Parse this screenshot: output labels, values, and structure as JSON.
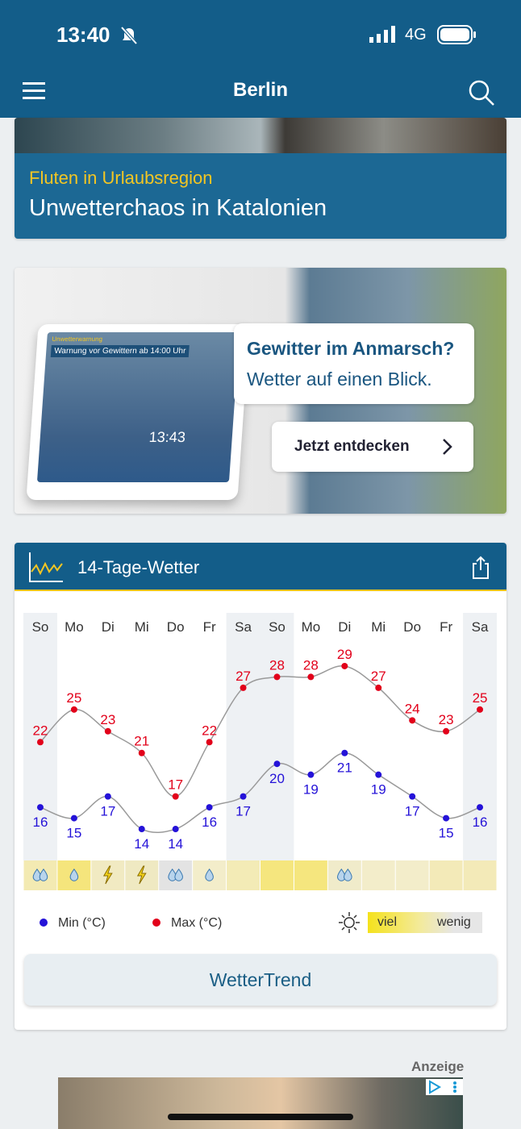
{
  "status_bar": {
    "time": "13:40",
    "network": "4G"
  },
  "header": {
    "title": "Berlin"
  },
  "news": {
    "kicker": "Fluten in Urlaubsregion",
    "headline": "Unwetterchaos in Katalonien"
  },
  "promo": {
    "headline": "Gewitter im Anmarsch?",
    "subline": "Wetter auf einen Blick.",
    "button": "Jetzt entdecken",
    "tablet": {
      "banner": "Unwetterwarnung",
      "warning": "Warnung vor Gewittern ab 14:00 Uhr",
      "clock": "13:43"
    }
  },
  "forecast": {
    "title": "14-Tage-Wetter",
    "sun_legend": {
      "high": "viel",
      "low": "wenig"
    },
    "button": "WetterTrend"
  },
  "chart_data": {
    "type": "line",
    "categories": [
      "So",
      "Mo",
      "Di",
      "Mi",
      "Do",
      "Fr",
      "Sa",
      "So",
      "Mo",
      "Di",
      "Mi",
      "Do",
      "Fr",
      "Sa"
    ],
    "series": [
      {
        "name": "Max (°C)",
        "color": "#e2001a",
        "values": [
          22,
          25,
          23,
          21,
          17,
          22,
          27,
          28,
          28,
          29,
          27,
          24,
          23,
          25
        ]
      },
      {
        "name": "Min (°C)",
        "color": "#2412d8",
        "values": [
          16,
          15,
          17,
          14,
          14,
          16,
          17,
          20,
          19,
          21,
          19,
          17,
          15,
          16
        ]
      }
    ],
    "ylim": [
      12,
      31
    ],
    "line_color": "#9a9a9a"
  },
  "ad": {
    "label": "Anzeige"
  }
}
